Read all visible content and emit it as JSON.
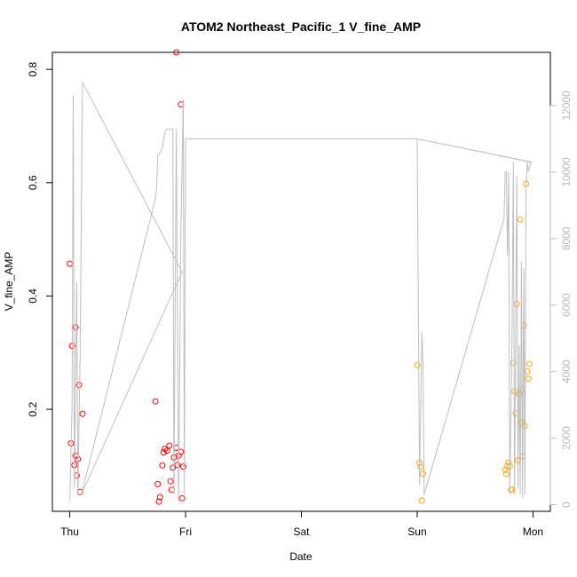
{
  "chart_data": {
    "type": "scatter",
    "title": "ATOM2 Northeast_Pacific_1 V_fine_AMP",
    "xlabel": "Date",
    "ylabel": "V_fine_AMP",
    "x_ticks": [
      "Thu",
      "Fri",
      "Sat",
      "Sun",
      "Mon"
    ],
    "xlim_days": [
      -0.15,
      4.15
    ],
    "ylim": [
      0.02,
      0.83
    ],
    "y_ticks": [
      "0.2",
      "0.4",
      "0.6",
      "0.8"
    ],
    "y_right_ticks": [
      "0",
      "2000",
      "4000",
      "6000",
      "8000",
      "10000",
      "12000"
    ],
    "y_right_lim": [
      -200,
      13600
    ],
    "grid": false,
    "colors": {
      "series_red": "#ff0000",
      "series_orange": "#ffa500",
      "trace_line": "#bebebe",
      "right_axis": "#bebebe"
    },
    "series": [
      {
        "color_key": "series_red",
        "points": [
          [
            0.0,
            0.457
          ],
          [
            0.02,
            0.312
          ],
          [
            0.05,
            0.345
          ],
          [
            0.08,
            0.243
          ],
          [
            0.11,
            0.192
          ],
          [
            0.01,
            0.14
          ],
          [
            0.05,
            0.118
          ],
          [
            0.07,
            0.112
          ],
          [
            0.04,
            0.102
          ],
          [
            0.06,
            0.083
          ],
          [
            0.09,
            0.054
          ],
          [
            0.74,
            0.214
          ],
          [
            0.76,
            0.068
          ],
          [
            0.78,
            0.045
          ],
          [
            0.77,
            0.037
          ],
          [
            0.8,
            0.101
          ],
          [
            0.81,
            0.124
          ],
          [
            0.82,
            0.13
          ],
          [
            0.84,
            0.127
          ],
          [
            0.86,
            0.136
          ],
          [
            0.87,
            0.073
          ],
          [
            0.88,
            0.058
          ],
          [
            0.89,
            0.097
          ],
          [
            0.9,
            0.115
          ],
          [
            0.92,
            0.132
          ],
          [
            0.93,
            0.102
          ],
          [
            0.94,
            0.118
          ],
          [
            0.96,
            0.125
          ],
          [
            0.98,
            0.099
          ],
          [
            0.97,
            0.043
          ],
          [
            0.92,
            0.83
          ],
          [
            0.96,
            0.738
          ]
        ]
      },
      {
        "color_key": "series_orange",
        "points": [
          [
            3.0,
            0.278
          ],
          [
            3.02,
            0.106
          ],
          [
            3.03,
            0.098
          ],
          [
            3.05,
            0.086
          ],
          [
            3.04,
            0.039
          ],
          [
            3.76,
            0.093
          ],
          [
            3.77,
            0.086
          ],
          [
            3.78,
            0.1
          ],
          [
            3.79,
            0.106
          ],
          [
            3.8,
            0.099
          ],
          [
            3.81,
            0.058
          ],
          [
            3.82,
            0.058
          ],
          [
            3.83,
            0.282
          ],
          [
            3.84,
            0.232
          ],
          [
            3.85,
            0.193
          ],
          [
            3.86,
            0.386
          ],
          [
            3.87,
            0.11
          ],
          [
            3.88,
            0.226
          ],
          [
            3.89,
            0.535
          ],
          [
            3.9,
            0.175
          ],
          [
            3.91,
            0.235
          ],
          [
            3.92,
            0.348
          ],
          [
            3.93,
            0.171
          ],
          [
            3.94,
            0.598
          ],
          [
            3.95,
            0.267
          ],
          [
            3.96,
            0.254
          ],
          [
            3.97,
            0.28
          ],
          [
            3.91,
            0.117
          ],
          [
            3.9,
            0.178
          ]
        ]
      },
      {
        "color_key": "trace_line",
        "kind": "line",
        "axis": "right",
        "points": [
          [
            0.0,
            100
          ],
          [
            0.02,
            3000
          ],
          [
            0.03,
            12300
          ],
          [
            0.04,
            500
          ],
          [
            0.06,
            6700
          ],
          [
            0.07,
            300
          ],
          [
            0.09,
            4600
          ],
          [
            0.11,
            12700
          ],
          [
            0.97,
            7000
          ],
          [
            0.1,
            300
          ],
          [
            0.74,
            9200
          ],
          [
            0.75,
            9500
          ],
          [
            0.76,
            10500
          ],
          [
            0.78,
            10600
          ],
          [
            0.8,
            10700
          ],
          [
            0.82,
            11200
          ],
          [
            0.84,
            11300
          ],
          [
            0.86,
            11300
          ],
          [
            0.89,
            11300
          ],
          [
            0.9,
            300
          ],
          [
            0.92,
            11300
          ],
          [
            0.94,
            100
          ],
          [
            0.96,
            8200
          ],
          [
            0.98,
            12200
          ],
          [
            0.99,
            300
          ],
          [
            1.0,
            11000
          ],
          [
            3.0,
            11000
          ],
          [
            3.02,
            600
          ],
          [
            3.04,
            5200
          ],
          [
            3.05,
            4300
          ],
          [
            3.06,
            300
          ],
          [
            3.75,
            8600
          ],
          [
            3.76,
            10000
          ],
          [
            3.77,
            10000
          ],
          [
            3.78,
            7500
          ],
          [
            3.79,
            10000
          ],
          [
            3.8,
            300
          ],
          [
            3.82,
            5300
          ],
          [
            3.83,
            10300
          ],
          [
            3.84,
            300
          ],
          [
            3.86,
            9900
          ],
          [
            3.87,
            500
          ],
          [
            3.88,
            4800
          ],
          [
            3.89,
            300
          ],
          [
            3.9,
            7300
          ],
          [
            3.91,
            200
          ],
          [
            3.92,
            7100
          ],
          [
            3.93,
            300
          ],
          [
            3.94,
            9500
          ],
          [
            3.95,
            10300
          ],
          [
            3.96,
            10000
          ],
          [
            3.98,
            10300
          ],
          [
            3.0,
            11000
          ],
          [
            3.99,
            10300
          ]
        ]
      }
    ]
  }
}
